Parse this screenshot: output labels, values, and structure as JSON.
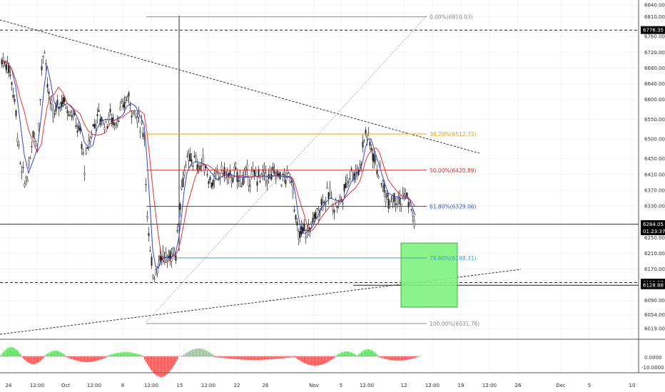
{
  "chart_data": {
    "type": "candlestick",
    "title": "",
    "price_axis": {
      "ticks": [
        6840,
        6810,
        6760,
        6720,
        6680,
        6640,
        6600,
        6550,
        6500,
        6450,
        6410,
        6370,
        6330,
        6250,
        6210,
        6170,
        6130,
        6090,
        6054,
        6019
      ],
      "ylim": [
        6005,
        6855
      ],
      "tick_labels": [
        "6840.00",
        "6810.00",
        "6760.00",
        "6720.00",
        "6680.00",
        "6640.00",
        "6600.00",
        "6550.00",
        "6500.00",
        "6450.00",
        "6410.00",
        "6370.00",
        "6330.00",
        "6250.00",
        "6210.00",
        "6170.00",
        "6130.00",
        "6090.00",
        "6054.00",
        "6019.00"
      ]
    },
    "price_markers": [
      {
        "label": "6776.35",
        "value": 6776.35,
        "color": "#000000"
      },
      {
        "label": "6284.05",
        "value": 6284.05,
        "color": "#000000"
      },
      {
        "label": "01:23:37",
        "value": 6266,
        "color": "#000000"
      },
      {
        "label": "6135.57",
        "value": 6135.57,
        "color": "#000000"
      },
      {
        "label": "6128.88",
        "value": 6128.88,
        "color": "#000000"
      }
    ],
    "time_axis": {
      "labels": [
        "24",
        "12:00",
        "Oct",
        "12:00",
        "8",
        "12:00",
        "15",
        "12:00",
        "22",
        "26",
        "Nov",
        "5",
        "12:00",
        "12",
        "12:00",
        "19",
        "12:00",
        "26",
        "Dec",
        "5",
        "10"
      ],
      "positions": [
        12,
        52,
        92,
        132,
        172,
        212,
        252,
        292,
        332,
        372,
        440,
        478,
        514,
        566,
        606,
        646,
        686,
        726,
        786,
        826,
        886
      ]
    },
    "fibonacci": [
      {
        "label": "0.00%(6810.03)",
        "value": 6810.03,
        "color": "#8c8c8c"
      },
      {
        "label": "38.20%(6512.73)",
        "value": 6512.73,
        "color": "#f0a000"
      },
      {
        "label": "50.00%(6420.89)",
        "value": 6420.89,
        "color": "#e03030"
      },
      {
        "label": "61.80%(6329.06)",
        "value": 6329.06,
        "color": "#3050d0"
      },
      {
        "label": "78.60%(6198.31)",
        "value": 6198.31,
        "color": "#3aa0b0"
      },
      {
        "label": "100.00%(6031.76)",
        "value": 6031.76,
        "color": "#8c8c8c"
      }
    ],
    "oscillator": {
      "ticks": [
        "0.0000",
        "-10.0000"
      ]
    },
    "grid": true
  }
}
